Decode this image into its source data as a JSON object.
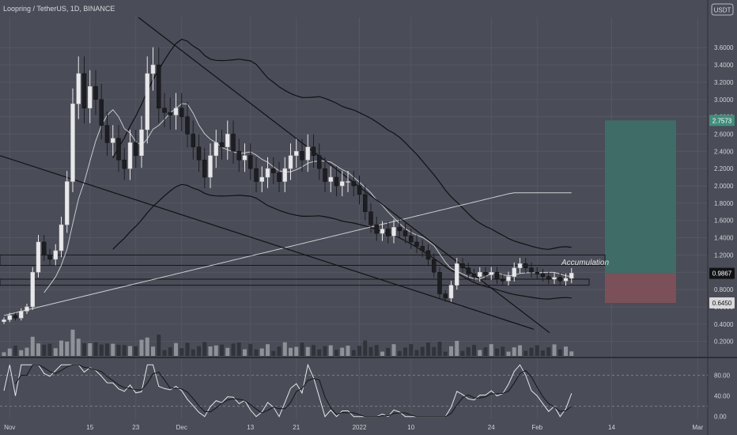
{
  "header": {
    "symbol_title": "Loopring / TetherUS, 1D, BINANCE",
    "currency": "USDT"
  },
  "colors": {
    "background": "#4a4c57",
    "candle_up": "#e8e8ea",
    "candle_down": "#1d1e23",
    "profit_zone": "#3f6c67",
    "loss_zone": "#7b5058",
    "current_price_tag": "#111214",
    "target_price_tag": "#3f8f7d",
    "stop_price_tag": "#d9d9dc"
  },
  "chart_data": {
    "type": "line",
    "title": "Loopring / TetherUS, 1D, BINANCE",
    "y_unit": "USDT",
    "ylim": [
      0.05,
      3.95
    ],
    "y_ticks": [
      "3.6000",
      "3.4000",
      "3.2000",
      "3.0000",
      "2.8000",
      "2.6000",
      "2.4000",
      "2.2000",
      "2.0000",
      "1.8000",
      "1.6000",
      "1.4000",
      "1.2000",
      "1.0000",
      "0.8000",
      "0.6000",
      "0.4000",
      "0.2000"
    ],
    "y_tick_values": [
      3.6,
      3.4,
      3.2,
      3.0,
      2.8,
      2.6,
      2.4,
      2.2,
      2.0,
      1.8,
      1.6,
      1.4,
      1.2,
      1.0,
      0.8,
      0.6,
      0.4,
      0.2
    ],
    "x_ticks": [
      {
        "label": "Nov",
        "date": "2021-11-01"
      },
      {
        "label": "15",
        "date": "2021-11-15"
      },
      {
        "label": "23",
        "date": "2021-11-23"
      },
      {
        "label": "Dec",
        "date": "2021-12-01"
      },
      {
        "label": "13",
        "date": "2021-12-13"
      },
      {
        "label": "21",
        "date": "2021-12-21"
      },
      {
        "label": "2022",
        "date": "2022-01-01"
      },
      {
        "label": "10",
        "date": "2022-01-10"
      },
      {
        "label": "24",
        "date": "2022-01-24"
      },
      {
        "label": "Feb",
        "date": "2022-02-01"
      },
      {
        "label": "14",
        "date": "2022-02-14"
      },
      {
        "label": "Mar",
        "date": "2022-03-01"
      },
      {
        "label": "14",
        "date": "2022-03-14"
      }
    ],
    "closes": [
      0.45,
      0.5,
      0.47,
      0.55,
      0.6,
      1.0,
      1.35,
      1.2,
      1.15,
      1.25,
      1.55,
      2.05,
      2.95,
      3.3,
      2.9,
      3.15,
      3.0,
      2.7,
      2.5,
      2.55,
      2.3,
      2.2,
      2.5,
      2.35,
      2.65,
      3.3,
      3.4,
      2.9,
      2.85,
      2.82,
      2.9,
      2.8,
      2.6,
      2.45,
      2.3,
      2.1,
      2.35,
      2.5,
      2.45,
      2.6,
      2.4,
      2.3,
      2.35,
      2.2,
      2.05,
      2.1,
      2.2,
      2.15,
      2.05,
      2.2,
      2.35,
      2.4,
      2.3,
      2.45,
      2.35,
      2.2,
      2.05,
      2.1,
      2.0,
      2.05,
      2.05,
      2.0,
      1.9,
      1.7,
      1.55,
      1.45,
      1.5,
      1.42,
      1.52,
      1.48,
      1.42,
      1.35,
      1.3,
      1.25,
      1.15,
      1.0,
      0.75,
      0.7,
      0.85,
      1.1,
      1.05,
      0.98,
      0.95,
      1.0,
      0.97,
      1.0,
      0.92,
      0.9,
      0.95,
      1.05,
      1.1,
      1.05,
      1.0,
      0.98,
      0.95,
      0.92,
      0.94,
      0.9,
      0.93,
      0.99
    ],
    "current_price": 0.9867,
    "current_price_label": "0.9867",
    "target_price": 2.7573,
    "target_price_label": "2.7573",
    "stop_price": 0.645,
    "stop_price_label": "0.6450",
    "annotations": [
      "Accumulation"
    ],
    "oscillator": {
      "y_ticks": [
        "80.00",
        "40.00",
        "0.00"
      ],
      "y_tick_values": [
        80,
        40,
        0
      ],
      "levels": [
        80,
        20
      ],
      "ylim": [
        -5,
        105
      ]
    }
  }
}
